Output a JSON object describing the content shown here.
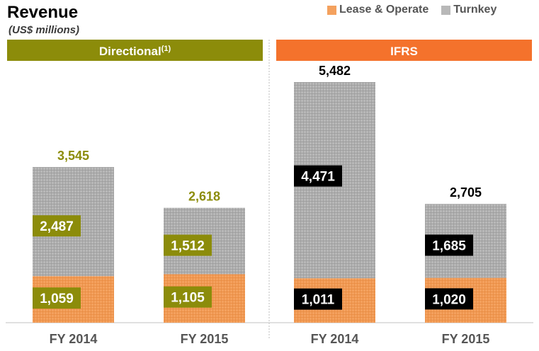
{
  "title": "Revenue",
  "subtitle": "(US$ millions)",
  "colors": {
    "lease": "#f4a15e",
    "turnkey": "#b8b8b8",
    "directional": "#8c8c0a",
    "ifrs": "#f4722c",
    "ifrs_box": "#000000"
  },
  "legend": [
    {
      "label": "Lease & Operate",
      "color": "#f4a15e"
    },
    {
      "label": "Turnkey",
      "color": "#b8b8b8"
    }
  ],
  "chart_data": {
    "type": "bar",
    "stacked": true,
    "title": "Revenue",
    "subtitle": "(US$ millions)",
    "ylim": [
      0,
      6000
    ],
    "grid": false,
    "legend_position": "top-right",
    "panels": [
      {
        "label": "Directional",
        "footnote": "(1)",
        "categories": [
          "FY 2014",
          "FY 2015"
        ],
        "series": [
          {
            "name": "Lease & Operate",
            "values": [
              1059,
              1105
            ]
          },
          {
            "name": "Turnkey",
            "values": [
              2487,
              1512
            ]
          }
        ],
        "value_labels": {
          "Lease & Operate": [
            "1,059",
            "1,105"
          ],
          "Turnkey": [
            "2,487",
            "1,512"
          ]
        },
        "totals": [
          3545,
          2618
        ],
        "total_labels": [
          "3,545",
          "2,618"
        ]
      },
      {
        "label": "IFRS",
        "footnote": "",
        "categories": [
          "FY 2014",
          "FY 2015"
        ],
        "series": [
          {
            "name": "Lease & Operate",
            "values": [
              1011,
              1020
            ]
          },
          {
            "name": "Turnkey",
            "values": [
              4471,
              1685
            ]
          }
        ],
        "value_labels": {
          "Lease & Operate": [
            "1,011",
            "1,020"
          ],
          "Turnkey": [
            "4,471",
            "1,685"
          ]
        },
        "totals": [
          5482,
          2705
        ],
        "total_labels": [
          "5,482",
          "2,705"
        ]
      }
    ]
  }
}
